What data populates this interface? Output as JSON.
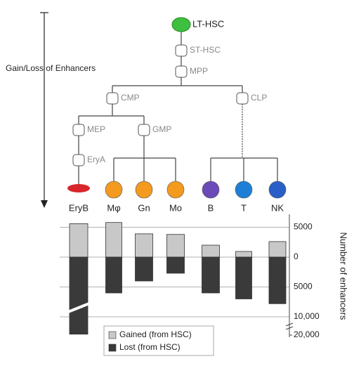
{
  "diagram": {
    "axis_label": "Gain/Loss of Enhancers",
    "nodes": [
      {
        "label": "LT-HSC"
      },
      {
        "label": "ST-HSC"
      },
      {
        "label": "MPP"
      },
      {
        "label": "CMP"
      },
      {
        "label": "CLP"
      },
      {
        "label": "MEP"
      },
      {
        "label": "GMP"
      },
      {
        "label": "EryA"
      }
    ]
  },
  "chart_data": {
    "type": "bar",
    "stacked": false,
    "categories": [
      "EryB",
      "Mφ",
      "Gn",
      "Mo",
      "B",
      "T",
      "NK"
    ],
    "series": [
      {
        "name": "Gained (from HSC)",
        "color": "#c8c8c8",
        "values": [
          5600,
          5800,
          3900,
          3800,
          2000,
          950,
          2600
        ]
      },
      {
        "name": "Lost (from HSC)",
        "color": "#3a3a3a",
        "values": [
          -19500,
          -6000,
          -4000,
          -2700,
          -6000,
          -7000,
          -7800
        ]
      }
    ],
    "ylim": [
      -20000,
      6000
    ],
    "yticks": [
      5000,
      0,
      {
        "value": -5000,
        "label": "5000"
      },
      {
        "value": -10000,
        "label": "10,000"
      },
      {
        "value": -20000,
        "label": "20,000"
      }
    ],
    "axis_break": true,
    "grid": true,
    "y_label": "Number of enhancers",
    "legend": "bottom-left"
  }
}
